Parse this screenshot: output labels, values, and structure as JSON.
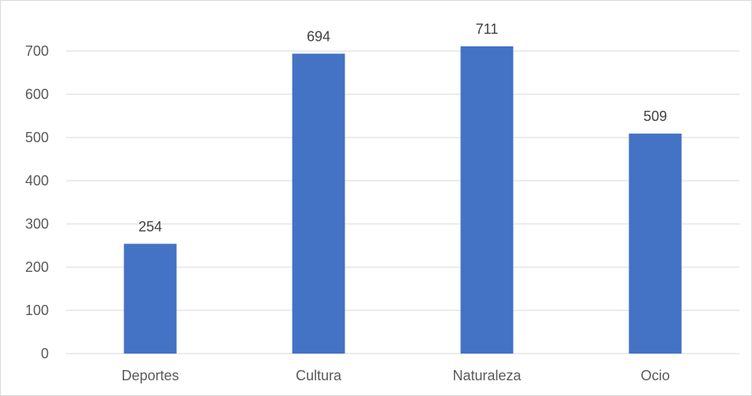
{
  "chart_data": {
    "type": "bar",
    "categories": [
      "Deportes",
      "Cultura",
      "Naturaleza",
      "Ocio"
    ],
    "values": [
      254,
      694,
      711,
      509
    ],
    "title": "",
    "xlabel": "",
    "ylabel": "",
    "ylim": [
      0,
      700
    ],
    "yticks": [
      0,
      100,
      200,
      300,
      400,
      500,
      600,
      700
    ],
    "grid": true,
    "legend": "none",
    "data_labels": true,
    "bar_color": "#4472C4",
    "grid_color": "#d9d9d9"
  }
}
